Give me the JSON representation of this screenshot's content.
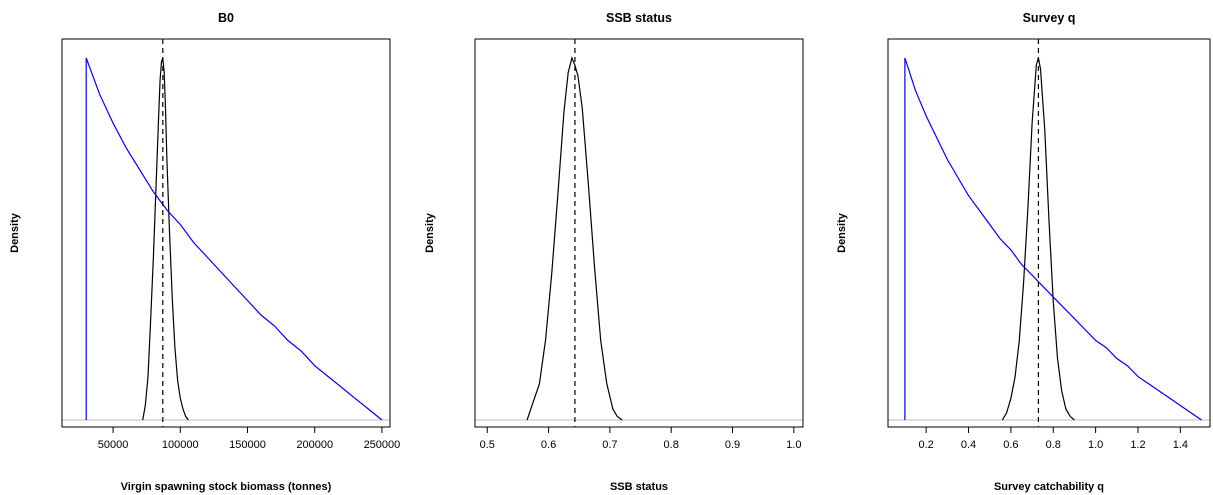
{
  "chart_data": [
    {
      "type": "line",
      "title": "B0",
      "xlabel": "Virgin spawning stock biomass (tonnes)",
      "ylabel": "Density",
      "xlim": [
        12000,
        256000
      ],
      "ticks": [
        50000,
        100000,
        150000,
        200000,
        250000
      ],
      "tick_labels": [
        "50000",
        "100000",
        "150000",
        "200000",
        "250000"
      ],
      "reference_x": 87000,
      "series": [
        {
          "kind": "posterior",
          "color": "#000000",
          "x": [
            72000,
            74000,
            76000,
            78000,
            80000,
            82000,
            84000,
            85000,
            86000,
            87000,
            88000,
            89000,
            90000,
            92000,
            94000,
            96000,
            98000,
            100000,
            102000,
            104000,
            106000
          ],
          "y": [
            0.0,
            0.04,
            0.12,
            0.28,
            0.45,
            0.65,
            0.85,
            0.94,
            0.99,
            1.0,
            0.96,
            0.86,
            0.72,
            0.52,
            0.34,
            0.2,
            0.11,
            0.06,
            0.03,
            0.01,
            0.0
          ]
        },
        {
          "kind": "prior",
          "color": "#0000ff",
          "x": [
            30000,
            40000,
            50000,
            60000,
            70000,
            80000,
            90000,
            100000,
            110000,
            120000,
            130000,
            140000,
            150000,
            160000,
            170000,
            180000,
            190000,
            200000,
            210000,
            220000,
            230000,
            240000,
            250000
          ],
          "y": [
            1.0,
            0.9,
            0.82,
            0.75,
            0.69,
            0.63,
            0.58,
            0.54,
            0.49,
            0.45,
            0.41,
            0.37,
            0.33,
            0.29,
            0.26,
            0.22,
            0.19,
            0.15,
            0.12,
            0.09,
            0.06,
            0.03,
            0.0
          ],
          "vertical_start": true
        }
      ]
    },
    {
      "type": "line",
      "title": "SSB status",
      "xlabel": "SSB status",
      "ylabel": "Density",
      "xlim": [
        0.48,
        1.015
      ],
      "ticks": [
        0.5,
        0.6,
        0.7,
        0.8,
        0.9,
        1.0
      ],
      "tick_labels": [
        "0.5",
        "0.6",
        "0.7",
        "0.8",
        "0.9",
        "1.0"
      ],
      "reference_x": 0.643,
      "series": [
        {
          "kind": "posterior",
          "color": "#000000",
          "x": [
            0.565,
            0.575,
            0.585,
            0.595,
            0.605,
            0.615,
            0.625,
            0.632,
            0.638,
            0.643,
            0.648,
            0.655,
            0.665,
            0.675,
            0.685,
            0.695,
            0.705,
            0.712,
            0.72
          ],
          "y": [
            0.0,
            0.05,
            0.1,
            0.22,
            0.4,
            0.62,
            0.85,
            0.96,
            1.0,
            0.98,
            0.95,
            0.86,
            0.65,
            0.42,
            0.22,
            0.1,
            0.03,
            0.01,
            0.0
          ]
        }
      ]
    },
    {
      "type": "line",
      "title": "Survey q",
      "xlabel": "Survey catchability q",
      "ylabel": "Density",
      "xlim": [
        0.02,
        1.54
      ],
      "ticks": [
        0.2,
        0.4,
        0.6,
        0.8,
        1.0,
        1.2,
        1.4
      ],
      "tick_labels": [
        "0.2",
        "0.4",
        "0.6",
        "0.8",
        "1.0",
        "1.2",
        "1.4"
      ],
      "reference_x": 0.73,
      "series": [
        {
          "kind": "posterior",
          "color": "#000000",
          "x": [
            0.56,
            0.58,
            0.6,
            0.62,
            0.64,
            0.66,
            0.68,
            0.7,
            0.72,
            0.73,
            0.74,
            0.76,
            0.78,
            0.8,
            0.82,
            0.84,
            0.86,
            0.88,
            0.9
          ],
          "y": [
            0.0,
            0.02,
            0.06,
            0.12,
            0.22,
            0.38,
            0.58,
            0.82,
            0.98,
            1.0,
            0.97,
            0.8,
            0.55,
            0.33,
            0.17,
            0.08,
            0.03,
            0.01,
            0.0
          ]
        },
        {
          "kind": "prior",
          "color": "#0000ff",
          "x": [
            0.1,
            0.15,
            0.2,
            0.25,
            0.3,
            0.35,
            0.4,
            0.45,
            0.5,
            0.55,
            0.6,
            0.65,
            0.7,
            0.75,
            0.8,
            0.85,
            0.9,
            0.95,
            1.0,
            1.05,
            1.1,
            1.15,
            1.2,
            1.25,
            1.3,
            1.35,
            1.4,
            1.45,
            1.5
          ],
          "y": [
            1.0,
            0.91,
            0.84,
            0.78,
            0.72,
            0.67,
            0.62,
            0.58,
            0.54,
            0.5,
            0.47,
            0.43,
            0.4,
            0.37,
            0.34,
            0.31,
            0.28,
            0.25,
            0.22,
            0.2,
            0.17,
            0.15,
            0.12,
            0.1,
            0.08,
            0.06,
            0.04,
            0.02,
            0.0
          ],
          "vertical_start": true
        }
      ]
    }
  ],
  "colors": {
    "posterior": "#000000",
    "prior": "#0000ff",
    "baseline": "#bebebe",
    "reference": "#000000"
  }
}
